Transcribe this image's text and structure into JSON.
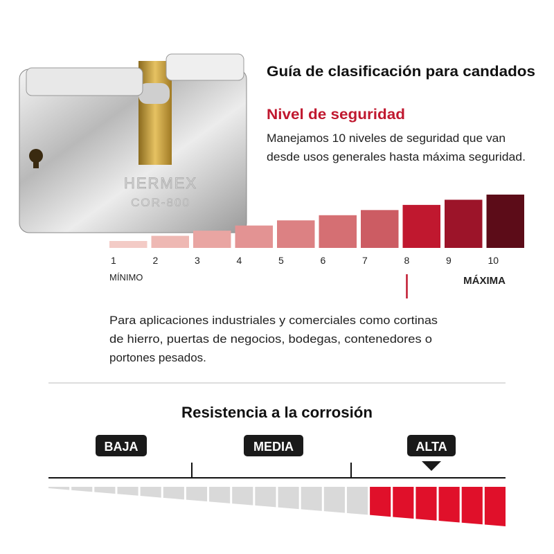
{
  "padlock": {
    "brand": "HERMEX",
    "model": "COR-800"
  },
  "header": {
    "title": "Guía de clasificación para candados"
  },
  "security": {
    "subtitle": "Nivel de seguridad",
    "description": [
      "Manejamos 10 niveles de seguridad que van",
      "desde usos generales hasta máxima seguridad."
    ],
    "levels": [
      "1",
      "2",
      "3",
      "4",
      "5",
      "6",
      "7",
      "8",
      "9",
      "10"
    ],
    "min_label": "MÍNIMO",
    "max_label": "MÁXIMA",
    "selected_level": 8,
    "application": [
      "Para aplicaciones industriales y comerciales como cortinas",
      "de hierro, puertas de negocios, bodegas, contenedores o",
      "portones pesados."
    ]
  },
  "corrosion": {
    "title": "Resistencia a la corrosión",
    "levels": [
      "BAJA",
      "MEDIA",
      "ALTA"
    ],
    "selected": "ALTA"
  }
}
